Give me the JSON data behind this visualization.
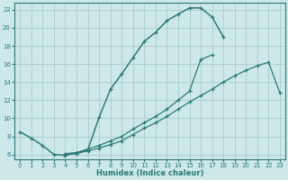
{
  "xlabel": "Humidex (Indice chaleur)",
  "bg_color": "#cce8e8",
  "grid_color": "#aacccc",
  "line_color": "#2d7a7a",
  "xlim": [
    -0.5,
    23.5
  ],
  "ylim": [
    5.5,
    22.8
  ],
  "xticks": [
    0,
    1,
    2,
    3,
    4,
    5,
    6,
    7,
    8,
    9,
    10,
    11,
    12,
    13,
    14,
    15,
    16,
    17,
    18,
    19,
    20,
    21,
    22,
    23
  ],
  "yticks": [
    6,
    8,
    10,
    12,
    14,
    16,
    18,
    20,
    22
  ],
  "curve1_x": [
    0,
    1,
    2,
    3,
    4,
    5,
    6,
    7,
    8,
    9,
    10,
    11,
    12,
    13,
    14,
    15,
    16,
    17,
    18
  ],
  "curve1_y": [
    8.5,
    7.8,
    7.0,
    6.0,
    5.9,
    6.2,
    6.5,
    10.1,
    13.2,
    14.9,
    16.7,
    18.5,
    19.5,
    20.8,
    21.5,
    22.2,
    22.2,
    21.2,
    19.0
  ],
  "curve2_x": [
    4,
    5,
    6,
    7,
    8,
    9,
    10,
    11,
    12,
    13,
    14,
    15,
    16,
    17,
    18,
    19,
    20,
    21,
    22,
    23
  ],
  "curve2_y": [
    6.1,
    6.2,
    6.6,
    7.0,
    7.5,
    8.0,
    8.8,
    9.5,
    10.2,
    11.0,
    12.0,
    13.0,
    16.5,
    17.0,
    null,
    null,
    null,
    null,
    null,
    null
  ],
  "curve3_x": [
    4,
    5,
    6,
    7,
    8,
    9,
    10,
    11,
    12,
    13,
    14,
    15,
    16,
    17,
    18,
    19,
    20,
    21,
    22,
    23
  ],
  "curve3_y": [
    6.0,
    6.1,
    6.4,
    6.7,
    7.1,
    7.5,
    8.2,
    8.9,
    9.5,
    10.2,
    11.0,
    11.8,
    12.5,
    13.2,
    14.0,
    14.7,
    15.3,
    15.8,
    16.2,
    12.8
  ]
}
